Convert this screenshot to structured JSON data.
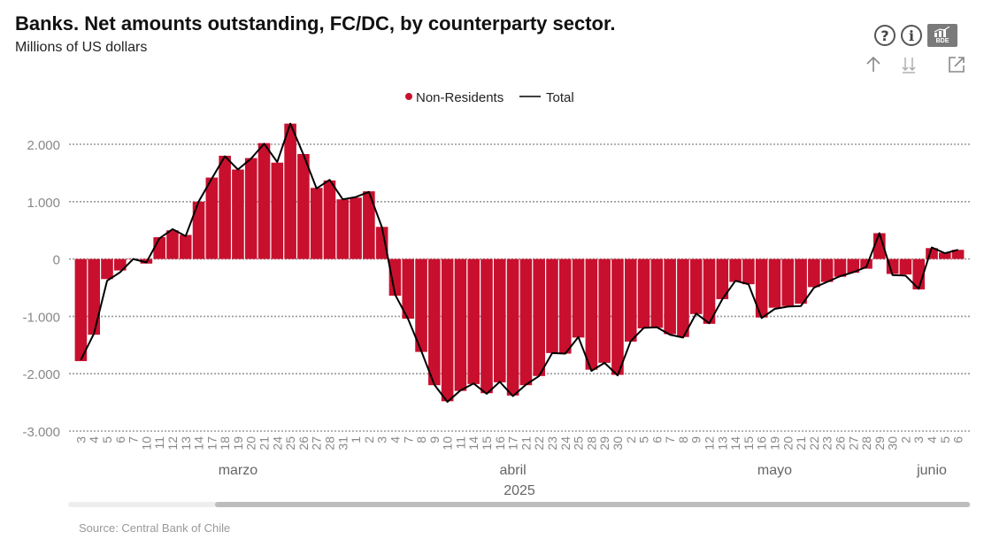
{
  "header": {
    "title": "Banks. Net amounts outstanding, FC/DC, by counterparty sector.",
    "subtitle": "Millions of US dollars"
  },
  "toolbar": {
    "help_label": "?",
    "info_label": "i",
    "logo_label": "BDE",
    "icons": [
      "help-icon",
      "info-icon",
      "bde-chart-icon",
      "arrow-up-icon",
      "drill-down-icon",
      "expand-icon"
    ]
  },
  "source": "Source: Central Bank of Chile",
  "colors": {
    "bar": "#c8102e",
    "line": "#000000",
    "grid": "#9a9a9a",
    "axis_text": "#888888"
  },
  "chart_data": {
    "type": "bar",
    "legend_position": "top-center",
    "grid": true,
    "legend": [
      {
        "name": "Non-Residents",
        "kind": "bar"
      },
      {
        "name": "Total",
        "kind": "line"
      }
    ],
    "ylim": [
      -3000,
      2400
    ],
    "yticks": [
      2000,
      1000,
      0,
      -1000,
      -2000,
      -3000
    ],
    "ytick_labels": [
      "2.000",
      "1.000",
      "0",
      "-1.000",
      "-2.000",
      "-3.000"
    ],
    "categories": [
      "3",
      "4",
      "5",
      "6",
      "7",
      "10",
      "11",
      "12",
      "13",
      "14",
      "17",
      "18",
      "19",
      "20",
      "21",
      "24",
      "25",
      "26",
      "27",
      "28",
      "31",
      "1",
      "2",
      "3",
      "4",
      "7",
      "8",
      "9",
      "10",
      "11",
      "14",
      "15",
      "16",
      "17",
      "21",
      "22",
      "23",
      "24",
      "25",
      "28",
      "29",
      "30",
      "2",
      "5",
      "6",
      "7",
      "8",
      "9",
      "12",
      "13",
      "14",
      "15",
      "16",
      "19",
      "20",
      "21",
      "22",
      "23",
      "26",
      "27",
      "28",
      "29",
      "30",
      "2",
      "3",
      "4",
      "5",
      "6"
    ],
    "month_labels": [
      {
        "label": "marzo",
        "position": 12.5
      },
      {
        "label": "abril",
        "position": 33.5
      },
      {
        "label": "mayo",
        "position": 53.5
      },
      {
        "label": "junio",
        "position": 65.5
      }
    ],
    "xlabel": "2025",
    "series": [
      {
        "name": "Non-Residents",
        "type": "bar",
        "values": [
          -1780,
          -1320,
          -350,
          -200,
          0,
          -80,
          380,
          500,
          420,
          1000,
          1420,
          1800,
          1560,
          1760,
          2020,
          1680,
          2360,
          1830,
          1240,
          1370,
          1040,
          1070,
          1180,
          560,
          -640,
          -1040,
          -1620,
          -2200,
          -2480,
          -2300,
          -2180,
          -2340,
          -2150,
          -2380,
          -2200,
          -2040,
          -1640,
          -1650,
          -1370,
          -1930,
          -1810,
          -2020,
          -1440,
          -1210,
          -1200,
          -1310,
          -1360,
          -960,
          -1130,
          -700,
          -400,
          -440,
          -1020,
          -850,
          -820,
          -780,
          -490,
          -400,
          -310,
          -240,
          -170,
          450,
          -260,
          -270,
          -530,
          190,
          110,
          160
        ]
      },
      {
        "name": "Total",
        "type": "line",
        "values": [
          -1760,
          -1300,
          -380,
          -230,
          0,
          -60,
          360,
          520,
          400,
          1000,
          1400,
          1790,
          1560,
          1750,
          2010,
          1690,
          2360,
          1820,
          1230,
          1380,
          1040,
          1080,
          1170,
          550,
          -620,
          -1050,
          -1600,
          -2190,
          -2490,
          -2290,
          -2170,
          -2350,
          -2140,
          -2390,
          -2190,
          -2040,
          -1640,
          -1650,
          -1360,
          -1950,
          -1810,
          -2030,
          -1430,
          -1200,
          -1190,
          -1320,
          -1370,
          -950,
          -1120,
          -700,
          -380,
          -440,
          -1030,
          -870,
          -830,
          -820,
          -500,
          -400,
          -300,
          -230,
          -140,
          450,
          -280,
          -290,
          -520,
          200,
          100,
          160
        ]
      }
    ]
  }
}
